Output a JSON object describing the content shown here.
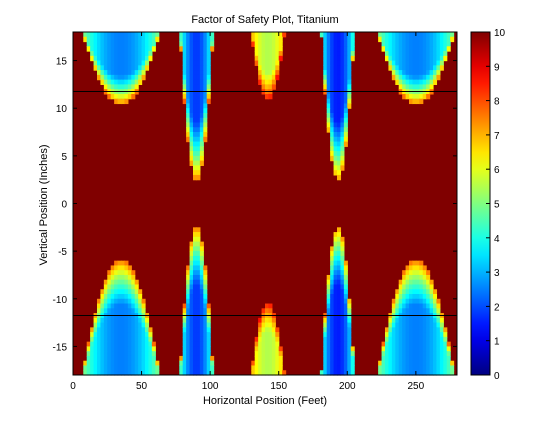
{
  "chart_data": {
    "type": "heatmap",
    "title": "Factor of Safety Plot, Titanium",
    "xlabel": "Horizontal Position (Feet)",
    "ylabel": "Vertical Position (Inches)",
    "xlim": [
      0,
      280
    ],
    "ylim": [
      -18,
      18
    ],
    "clim": [
      0,
      10
    ],
    "colormap": "jet",
    "x_ticks": [
      0,
      50,
      100,
      150,
      200,
      250
    ],
    "x_tick_labels": [
      "0",
      "50",
      "100",
      "150",
      "200",
      "250"
    ],
    "y_ticks": [
      15,
      10,
      5,
      0,
      -5,
      -10,
      -15
    ],
    "y_tick_labels": [
      "15",
      "10",
      "5",
      "0",
      "-5",
      "-10",
      "-15"
    ],
    "colorbar_ticks": [
      10,
      9,
      8,
      7,
      6,
      5,
      4,
      3,
      2,
      1,
      0
    ],
    "colorbar_tick_labels": [
      "10",
      "9",
      "8",
      "7",
      "6",
      "5",
      "4",
      "3",
      "2",
      "1",
      "0"
    ],
    "reference_lines_y": [
      11.75,
      -11.75
    ],
    "field": {
      "description_units": "factor of safety, clipped at 10",
      "lobes_top": [
        {
          "x_center": 35,
          "half_width": 28,
          "tip_y": 10.5,
          "min_fos": 2.5
        },
        {
          "x_center": 90,
          "half_width": 12,
          "tip_y": 2.5,
          "min_fos": 1.8
        },
        {
          "x_center": 142,
          "half_width": 12,
          "tip_y": 11,
          "min_fos": 5.5
        },
        {
          "x_center": 193,
          "half_width": 12,
          "tip_y": 2.5,
          "min_fos": 1.5
        },
        {
          "x_center": 250,
          "half_width": 28,
          "tip_y": 10.5,
          "min_fos": 2.5
        }
      ],
      "lobes_bottom": [
        {
          "x_center": 35,
          "half_width": 28,
          "tip_y": -6,
          "min_fos": 2.5
        },
        {
          "x_center": 90,
          "half_width": 12,
          "tip_y": -2.5,
          "min_fos": 1.8
        },
        {
          "x_center": 142,
          "half_width": 12,
          "tip_y": -10.5,
          "min_fos": 5.5
        },
        {
          "x_center": 193,
          "half_width": 12,
          "tip_y": -2.5,
          "min_fos": 1.5
        },
        {
          "x_center": 250,
          "half_width": 28,
          "tip_y": -6,
          "min_fos": 2.5
        }
      ]
    }
  }
}
